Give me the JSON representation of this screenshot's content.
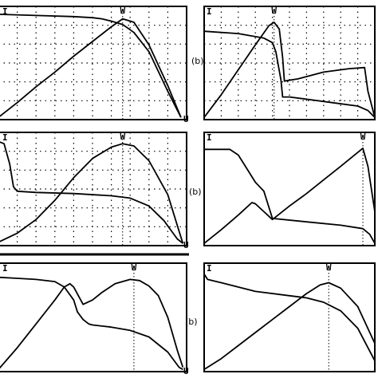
{
  "panel_labels": [
    {
      "text": "(b)"
    },
    {
      "text": "(b)"
    },
    {
      "text": "(b)"
    }
  ],
  "chart_data": [
    {
      "type": "line",
      "id": "p1",
      "labels": {
        "y": "I",
        "x": "U",
        "marker": "W"
      },
      "grid": true,
      "xlim": [
        0,
        1
      ],
      "ylim": [
        0,
        1
      ],
      "marker_x": 0.66,
      "series": [
        {
          "x": [
            0,
            0.2,
            0.4,
            0.5,
            0.55,
            0.6,
            0.66,
            0.72,
            0.8,
            0.9,
            0.97
          ],
          "values": [
            0.93,
            0.92,
            0.91,
            0.9,
            0.89,
            0.87,
            0.84,
            0.77,
            0.6,
            0.25,
            0.02
          ]
        },
        {
          "x": [
            0,
            0.1,
            0.2,
            0.3,
            0.4,
            0.5,
            0.6,
            0.66,
            0.72,
            0.8,
            0.9,
            0.97
          ],
          "values": [
            0.02,
            0.15,
            0.29,
            0.42,
            0.56,
            0.69,
            0.82,
            0.89,
            0.86,
            0.66,
            0.3,
            0.02
          ]
        }
      ]
    },
    {
      "type": "line",
      "id": "p2",
      "labels": {
        "y": "I",
        "x": "",
        "marker": "W"
      },
      "grid": true,
      "xlim": [
        0,
        1
      ],
      "ylim": [
        0,
        1
      ],
      "marker_x": 0.41,
      "series": [
        {
          "x": [
            0,
            0.2,
            0.35,
            0.4,
            0.42,
            0.45,
            0.46,
            0.5,
            0.6,
            0.75,
            0.9,
            0.96,
            1.0
          ],
          "values": [
            0.78,
            0.76,
            0.72,
            0.68,
            0.6,
            0.35,
            0.2,
            0.2,
            0.18,
            0.15,
            0.12,
            0.08,
            0.02
          ]
        },
        {
          "x": [
            0,
            0.1,
            0.2,
            0.3,
            0.38,
            0.41,
            0.44,
            0.46,
            0.47,
            0.55,
            0.7,
            0.85,
            0.94,
            0.96,
            1.0
          ],
          "values": [
            0.02,
            0.22,
            0.44,
            0.66,
            0.83,
            0.86,
            0.8,
            0.55,
            0.34,
            0.36,
            0.42,
            0.45,
            0.46,
            0.25,
            0.02
          ]
        }
      ]
    },
    {
      "type": "line",
      "id": "p3",
      "labels": {
        "y": "I",
        "x": "U",
        "marker": "W"
      },
      "grid": true,
      "xlim": [
        0,
        1
      ],
      "ylim": [
        0,
        1
      ],
      "marker_x": 0.66,
      "series": [
        {
          "x": [
            0,
            0.03,
            0.06,
            0.08,
            0.1,
            0.2,
            0.4,
            0.6,
            0.7,
            0.8,
            0.88,
            0.95,
            0.98
          ],
          "values": [
            0.92,
            0.9,
            0.72,
            0.52,
            0.48,
            0.47,
            0.46,
            0.44,
            0.42,
            0.35,
            0.22,
            0.06,
            0.02
          ]
        },
        {
          "x": [
            0,
            0.1,
            0.2,
            0.3,
            0.4,
            0.5,
            0.6,
            0.66,
            0.72,
            0.8,
            0.9,
            0.98
          ],
          "values": [
            0.03,
            0.11,
            0.23,
            0.4,
            0.6,
            0.77,
            0.87,
            0.9,
            0.88,
            0.75,
            0.45,
            0.02
          ]
        }
      ]
    },
    {
      "type": "line",
      "id": "p4",
      "labels": {
        "y": "I",
        "x": "",
        "marker": "W"
      },
      "grid": false,
      "xlim": [
        0,
        1
      ],
      "ylim": [
        0,
        1
      ],
      "marker_x": 0.93,
      "series": [
        {
          "x": [
            0,
            0.15,
            0.2,
            0.25,
            0.3,
            0.35,
            0.4,
            0.6,
            0.8,
            0.93,
            0.97,
            1.0
          ],
          "values": [
            0.85,
            0.85,
            0.8,
            0.68,
            0.56,
            0.48,
            0.24,
            0.21,
            0.18,
            0.15,
            0.1,
            0.02
          ]
        },
        {
          "x": [
            0,
            0.1,
            0.2,
            0.28,
            0.3,
            0.35,
            0.4,
            0.5,
            0.6,
            0.7,
            0.8,
            0.93,
            0.96,
            1.0
          ],
          "values": [
            0.02,
            0.14,
            0.27,
            0.38,
            0.37,
            0.3,
            0.23,
            0.35,
            0.46,
            0.58,
            0.7,
            0.86,
            0.7,
            0.3
          ]
        }
      ]
    },
    {
      "type": "line",
      "id": "p5",
      "labels": {
        "y": "I",
        "x": "U",
        "marker": "W"
      },
      "grid": false,
      "xlim": [
        0,
        1
      ],
      "ylim": [
        0,
        1
      ],
      "marker_x": 0.72,
      "series": [
        {
          "x": [
            0,
            0.1,
            0.2,
            0.3,
            0.35,
            0.4,
            0.42,
            0.45,
            0.48,
            0.5,
            0.6,
            0.7,
            0.8,
            0.9,
            0.96,
            0.98
          ],
          "values": [
            0.87,
            0.86,
            0.85,
            0.83,
            0.78,
            0.66,
            0.55,
            0.48,
            0.44,
            0.43,
            0.41,
            0.38,
            0.32,
            0.18,
            0.04,
            0.02
          ]
        },
        {
          "x": [
            0,
            0.1,
            0.2,
            0.3,
            0.35,
            0.38,
            0.4,
            0.45,
            0.5,
            0.55,
            0.62,
            0.7,
            0.75,
            0.8,
            0.85,
            0.9,
            0.95,
            0.98
          ],
          "values": [
            0.02,
            0.22,
            0.44,
            0.66,
            0.78,
            0.81,
            0.78,
            0.62,
            0.66,
            0.73,
            0.81,
            0.85,
            0.84,
            0.79,
            0.7,
            0.5,
            0.2,
            0.04
          ]
        }
      ]
    },
    {
      "type": "line",
      "id": "p6",
      "labels": {
        "y": "I",
        "x": "",
        "marker": "W"
      },
      "grid": false,
      "xlim": [
        0,
        1
      ],
      "ylim": [
        0,
        1
      ],
      "marker_x": 0.73,
      "series": [
        {
          "x": [
            0,
            0.02,
            0.1,
            0.3,
            0.5,
            0.6,
            0.7,
            0.8,
            0.9,
            1.0
          ],
          "values": [
            0.9,
            0.85,
            0.82,
            0.74,
            0.7,
            0.68,
            0.64,
            0.56,
            0.4,
            0.1
          ]
        },
        {
          "x": [
            0,
            0.1,
            0.2,
            0.3,
            0.4,
            0.5,
            0.6,
            0.68,
            0.73,
            0.8,
            0.9,
            1.0
          ],
          "values": [
            0.02,
            0.12,
            0.24,
            0.36,
            0.48,
            0.6,
            0.72,
            0.8,
            0.82,
            0.77,
            0.6,
            0.26
          ]
        }
      ]
    }
  ]
}
